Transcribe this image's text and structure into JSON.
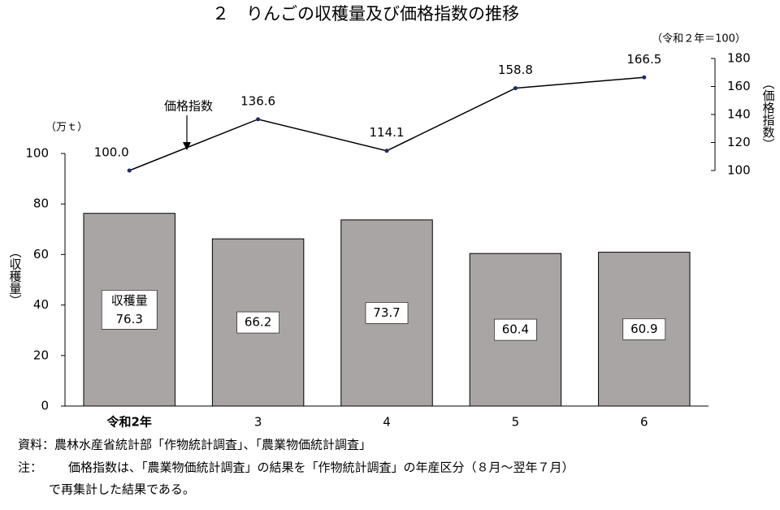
{
  "chart_data": {
    "type": "combo",
    "title": "２　りんごの収穫量及び価格指数の推移",
    "y_unit": "（万ｔ）",
    "y_label": "（収穫量）",
    "y2_unit": "（令和２年＝100）",
    "y2_label": "（価格指数）",
    "categories": [
      "令和2年",
      "3",
      "4",
      "5",
      "6"
    ],
    "ylim": [
      0,
      100
    ],
    "yticks": [
      0,
      20,
      40,
      60,
      80,
      100
    ],
    "y2lim": [
      100,
      180
    ],
    "y2ticks": [
      100,
      120,
      140,
      160,
      180
    ],
    "series": [
      {
        "name": "収穫量",
        "type": "bar",
        "color": "#aaa5a5",
        "values": [
          76.3,
          66.2,
          73.7,
          60.4,
          60.9
        ]
      },
      {
        "name": "価格指数",
        "type": "line",
        "axis": "y2",
        "color": "#000000",
        "marker_color": "#1f2a6b",
        "values": [
          100,
          136.6,
          114.1,
          158.8,
          166.5
        ],
        "value_labels": [
          "100.0",
          "136.6",
          "114.1",
          "158.8",
          "166.5"
        ]
      }
    ],
    "source": "資料：農林水産省統計部「作物統計調査」、「農業物価統計調査」",
    "note_label": "注：",
    "note": [
      "価格指数は、「農業物価統計調査」の結果を「作物統計調査」の年産区分（８月～翌年７月）",
      "で再集計した結果である。"
    ]
  }
}
